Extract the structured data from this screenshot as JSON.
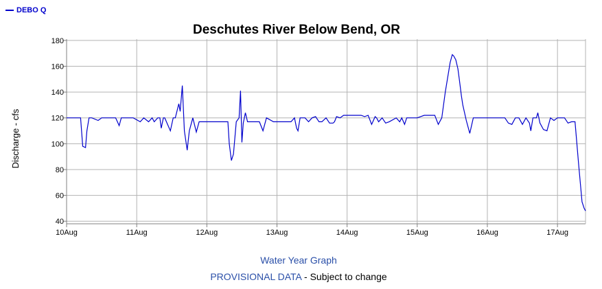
{
  "colors": {
    "series": "#0000cc",
    "grid": "#b3b3b3",
    "axis": "#808080",
    "footer_link": "#2a4fa8"
  },
  "footer": {
    "link_text": "Water Year Graph",
    "note_prefix": "PROVISIONAL DATA",
    "note_suffix": " - Subject to change"
  },
  "chart_data": {
    "type": "line",
    "title": "Deschutes River Below Bend, OR",
    "ylabel": "Discharge - cfs",
    "xlabel": "",
    "legend": {
      "position": "top-left",
      "entries": [
        "DEBO Q"
      ]
    },
    "grid": true,
    "xlim": [
      0,
      7.4
    ],
    "ylim": [
      38,
      181
    ],
    "x_ticks": [
      {
        "value": 0,
        "label": "10Aug"
      },
      {
        "value": 1,
        "label": "11Aug"
      },
      {
        "value": 2,
        "label": "12Aug"
      },
      {
        "value": 3,
        "label": "13Aug"
      },
      {
        "value": 4,
        "label": "14Aug"
      },
      {
        "value": 5,
        "label": "15Aug"
      },
      {
        "value": 6,
        "label": "16Aug"
      },
      {
        "value": 7,
        "label": "17Aug"
      }
    ],
    "y_ticks": [
      40,
      60,
      80,
      100,
      120,
      140,
      160,
      180
    ],
    "series": [
      {
        "name": "DEBO Q",
        "x": [
          0,
          0.15,
          0.2,
          0.23,
          0.27,
          0.29,
          0.32,
          0.36,
          0.45,
          0.5,
          0.55,
          0.6,
          0.7,
          0.75,
          0.78,
          0.82,
          0.95,
          1.05,
          1.1,
          1.17,
          1.22,
          1.25,
          1.3,
          1.33,
          1.35,
          1.38,
          1.4,
          1.48,
          1.52,
          1.55,
          1.6,
          1.62,
          1.65,
          1.68,
          1.72,
          1.75,
          1.8,
          1.85,
          1.89,
          1.92,
          2.25,
          2.3,
          2.32,
          2.35,
          2.38,
          2.42,
          2.46,
          2.48,
          2.5,
          2.52,
          2.55,
          2.58,
          2.6,
          2.65,
          2.7,
          2.75,
          2.8,
          2.85,
          2.95,
          3.1,
          3.2,
          3.25,
          3.28,
          3.3,
          3.33,
          3.4,
          3.45,
          3.5,
          3.55,
          3.6,
          3.64,
          3.7,
          3.75,
          3.8,
          3.82,
          3.85,
          3.9,
          3.95,
          4.0,
          4.2,
          4.25,
          4.3,
          4.35,
          4.4,
          4.42,
          4.45,
          4.5,
          4.55,
          4.6,
          4.7,
          4.75,
          4.78,
          4.82,
          4.85,
          4.9,
          5.0,
          5.1,
          5.15,
          5.2,
          5.25,
          5.3,
          5.35,
          5.4,
          5.47,
          5.5,
          5.52,
          5.55,
          5.58,
          5.6,
          5.63,
          5.65,
          5.7,
          5.75,
          5.8,
          5.85,
          5.87,
          5.9,
          5.92,
          5.95,
          6.0,
          6.1,
          6.2,
          6.25,
          6.3,
          6.35,
          6.4,
          6.45,
          6.5,
          6.55,
          6.6,
          6.62,
          6.65,
          6.7,
          6.72,
          6.75,
          6.8,
          6.85,
          6.9,
          6.95,
          7.0,
          7.05,
          7.1,
          7.15,
          7.2,
          7.25,
          7.3,
          7.35,
          7.38,
          7.4
        ],
        "values": [
          120,
          120,
          120,
          98,
          97,
          110,
          120,
          120,
          118,
          120,
          120,
          120,
          120,
          114,
          120,
          120,
          120,
          117,
          120,
          117,
          120,
          117,
          120,
          120,
          112,
          120,
          120,
          110,
          120,
          120,
          131,
          125,
          145,
          110,
          95,
          110,
          120,
          109,
          117,
          117,
          117,
          117,
          100,
          87,
          92,
          117,
          120,
          141,
          101,
          116,
          124,
          117,
          117,
          117,
          117,
          117,
          110,
          120,
          117,
          117,
          117,
          120,
          112,
          110,
          120,
          120,
          117,
          120,
          121,
          117,
          117,
          120,
          116,
          116,
          117,
          121,
          120,
          122,
          122,
          122,
          121,
          122,
          115,
          121,
          120,
          117,
          120,
          116,
          117,
          120,
          117,
          120,
          115,
          120,
          120,
          120,
          122,
          122,
          122,
          122,
          115,
          120,
          140,
          163,
          169,
          168,
          165,
          158,
          150,
          137,
          130,
          118,
          108,
          120,
          120,
          120,
          120,
          120,
          120,
          120,
          120,
          120,
          120,
          116,
          115,
          120,
          120,
          115,
          120,
          116,
          110,
          120,
          120,
          124,
          116,
          111,
          110,
          120,
          118,
          120,
          120,
          120,
          116,
          117,
          117,
          85,
          55,
          50,
          48
        ]
      }
    ]
  }
}
